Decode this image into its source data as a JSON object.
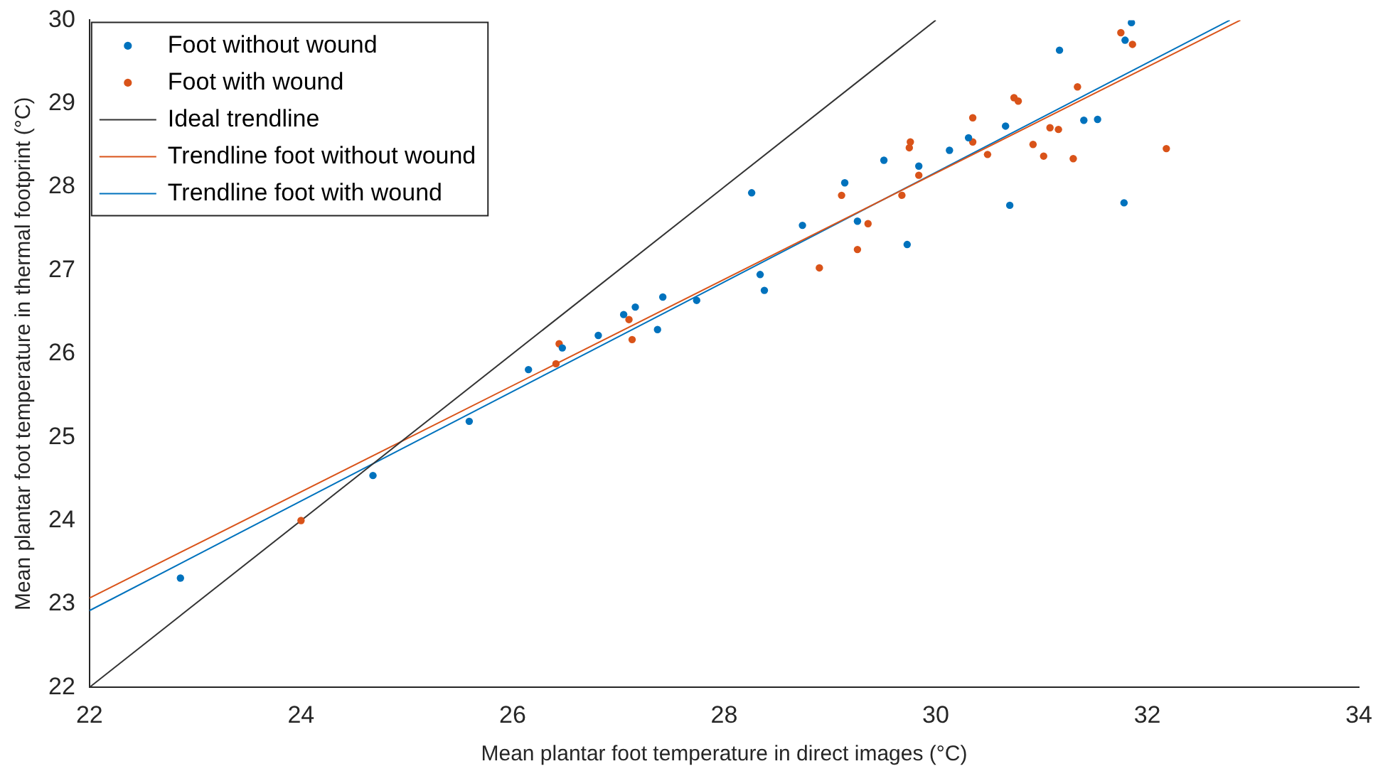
{
  "chart_data": {
    "type": "scatter",
    "xlabel": "Mean plantar foot temperature in direct images (°C)",
    "ylabel": "Mean plantar foot temperature in thermal footprint (°C)",
    "xlim": [
      22,
      34
    ],
    "xticks": [
      22,
      24,
      26,
      28,
      30,
      32,
      34
    ],
    "ylim": [
      22,
      30
    ],
    "yticks": [
      22,
      23,
      24,
      25,
      26,
      27,
      28,
      29,
      30
    ],
    "grid": false,
    "legend": "top left",
    "series": [
      {
        "name": "Foot without wound",
        "marker": "circle",
        "color": "#0072bd",
        "x": [
          22.86,
          24.68,
          25.59,
          26.15,
          26.47,
          26.81,
          27.05,
          27.16,
          27.37,
          27.42,
          27.74,
          28.26,
          28.34,
          28.38,
          28.74,
          29.14,
          29.26,
          29.51,
          29.73,
          29.84,
          30.13,
          30.31,
          30.66,
          30.7,
          31.17,
          31.4,
          31.53,
          31.78,
          31.79,
          31.85
        ],
        "values": [
          23.31,
          24.54,
          25.19,
          25.81,
          26.07,
          26.22,
          26.47,
          26.56,
          26.29,
          26.68,
          26.64,
          27.93,
          26.95,
          26.76,
          27.54,
          28.05,
          27.59,
          28.32,
          27.31,
          28.25,
          28.44,
          28.59,
          28.73,
          27.78,
          29.64,
          28.8,
          28.81,
          27.81,
          29.76,
          29.97
        ]
      },
      {
        "name": "Foot with wound",
        "marker": "circle",
        "color": "#d95319",
        "x": [
          24.0,
          26.41,
          26.44,
          27.1,
          27.13,
          28.9,
          29.11,
          29.26,
          29.36,
          29.68,
          29.75,
          29.76,
          29.84,
          30.35,
          30.35,
          30.49,
          30.74,
          30.78,
          30.92,
          31.02,
          31.08,
          31.16,
          31.3,
          31.34,
          31.75,
          31.86,
          32.18
        ],
        "values": [
          24.0,
          25.88,
          26.12,
          26.41,
          26.17,
          27.03,
          27.9,
          27.25,
          27.56,
          27.9,
          28.47,
          28.54,
          28.14,
          28.83,
          28.54,
          28.39,
          29.07,
          29.03,
          28.51,
          28.37,
          28.71,
          28.69,
          28.34,
          29.2,
          29.85,
          29.71,
          28.46
        ]
      },
      {
        "name": "Ideal trendline",
        "type": "line",
        "marker": "none",
        "color": "#333333",
        "x": [
          22,
          30
        ],
        "values": [
          22,
          30
        ]
      },
      {
        "name": "Trendline foot without wound",
        "type": "line",
        "marker": "none",
        "color": "#d95319",
        "x": [
          22,
          32.88
        ],
        "values": [
          23.07,
          30
        ]
      },
      {
        "name": "Trendline foot with wound",
        "type": "line",
        "marker": "none",
        "color": "#0072bd",
        "x": [
          22,
          32.78
        ],
        "values": [
          22.92,
          30
        ]
      }
    ]
  }
}
